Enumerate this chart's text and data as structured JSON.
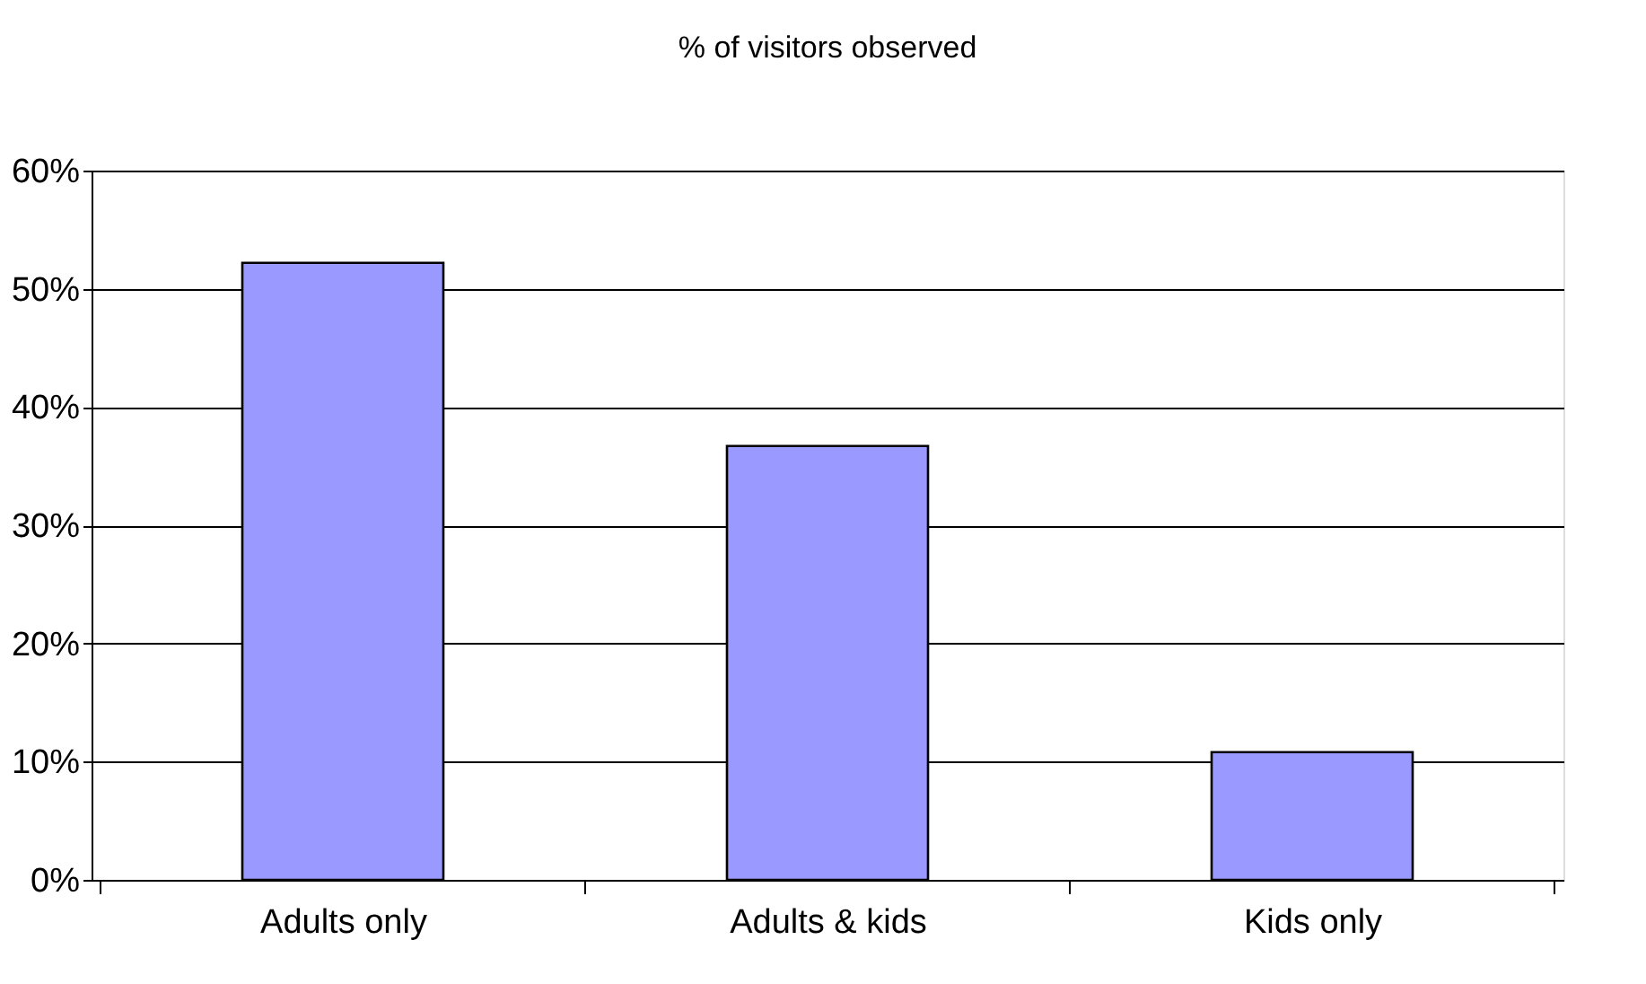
{
  "chart_data": {
    "type": "bar",
    "title": "% of visitors observed",
    "categories": [
      "Adults only",
      "Adults & kids",
      "Kids only"
    ],
    "values": [
      52.2,
      36.7,
      10.8
    ],
    "color": "#9999ff",
    "ylim": [
      0,
      60
    ],
    "yticks": [
      {
        "value": 0,
        "label": "0%"
      },
      {
        "value": 10,
        "label": "10%"
      },
      {
        "value": 20,
        "label": "20%"
      },
      {
        "value": 30,
        "label": "30%"
      },
      {
        "value": 40,
        "label": "40%"
      },
      {
        "value": 50,
        "label": "50%"
      },
      {
        "value": 60,
        "label": "60%"
      }
    ],
    "grid": "y"
  }
}
